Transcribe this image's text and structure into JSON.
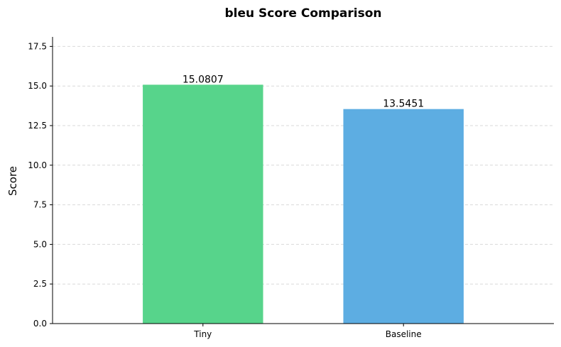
{
  "chart_data": {
    "type": "bar",
    "title": "bleu Score Comparison",
    "xlabel": "",
    "ylabel": "Score",
    "categories": [
      "Tiny",
      "Baseline"
    ],
    "values": [
      15.0807,
      13.5451
    ],
    "value_labels": [
      "15.0807",
      "13.5451"
    ],
    "colors": [
      "#57d48b",
      "#5dade2"
    ],
    "ylim": [
      0,
      18.1
    ],
    "yticks": [
      0,
      2.5,
      5,
      7.5,
      10,
      12.5,
      15,
      17.5
    ],
    "ytick_labels": [
      "0.0",
      "2.5",
      "5.0",
      "7.5",
      "10.0",
      "12.5",
      "15.0",
      "17.5"
    ],
    "grid": "y-dashed",
    "legend": "none"
  }
}
